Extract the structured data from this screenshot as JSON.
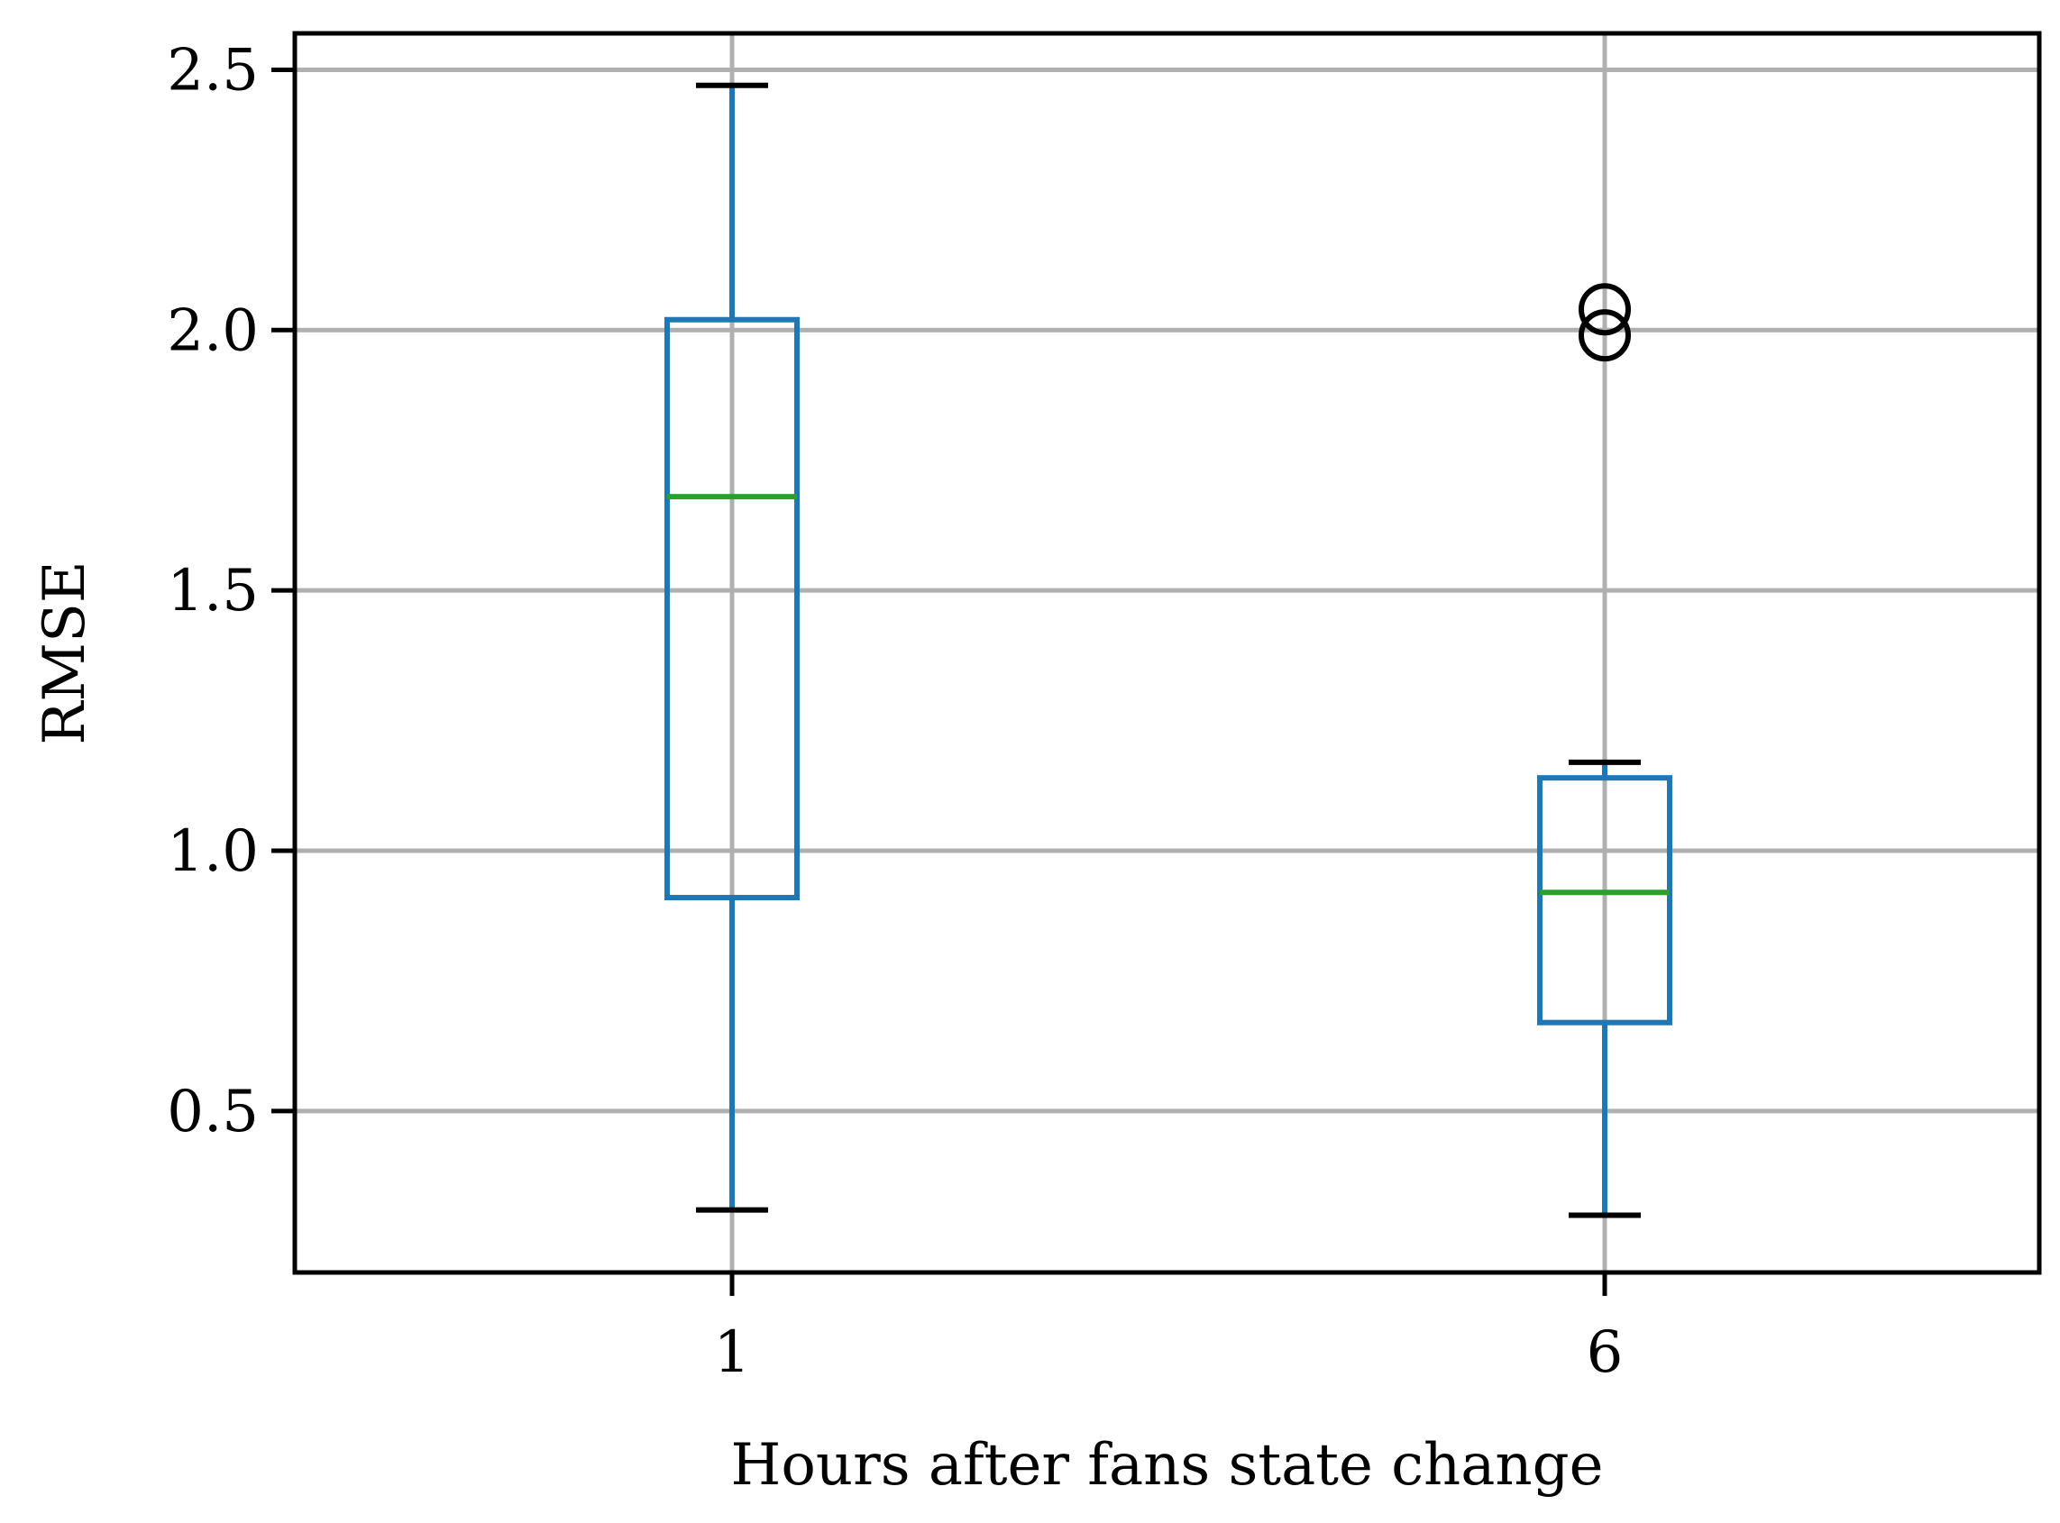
{
  "chart_data": {
    "type": "box",
    "xlabel": "Hours after fans state change",
    "ylabel": "RMSE",
    "ylim": [
      0.19,
      2.57
    ],
    "yticks": [
      0.5,
      1.0,
      1.5,
      2.0,
      2.5
    ],
    "ytick_labels": [
      "0.5",
      "1.0",
      "1.5",
      "2.0",
      "2.5"
    ],
    "grid": true,
    "categories": [
      "1",
      "6"
    ],
    "boxes": [
      {
        "category": "1",
        "whisker_low": 0.31,
        "q1": 0.91,
        "median": 1.68,
        "q3": 2.02,
        "whisker_high": 2.47,
        "outliers": []
      },
      {
        "category": "6",
        "whisker_low": 0.3,
        "q1": 0.67,
        "median": 0.92,
        "q3": 1.14,
        "whisker_high": 1.17,
        "outliers": [
          1.99,
          2.04
        ]
      }
    ],
    "colors": {
      "box": "#1f77b4",
      "median": "#2ca02c",
      "whisker_cap": "#000000",
      "outlier": "#000000",
      "grid": "#b0b0b0"
    }
  }
}
